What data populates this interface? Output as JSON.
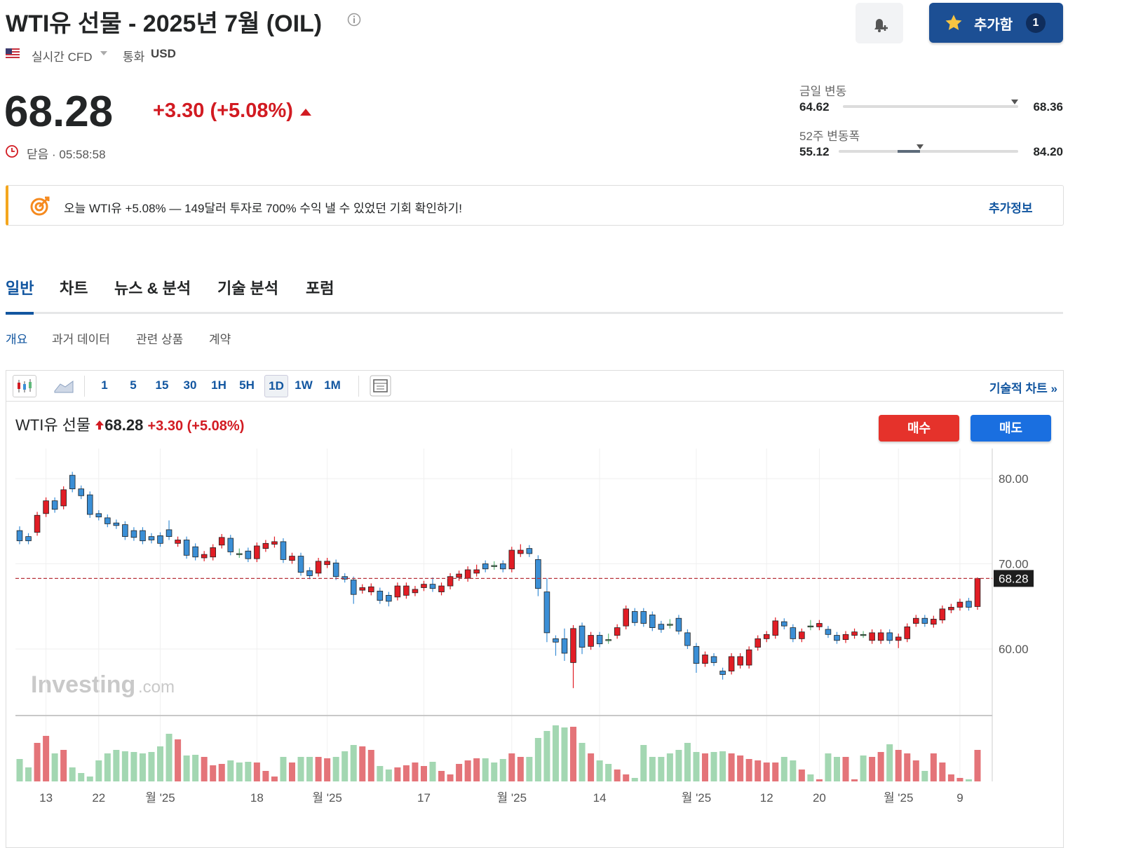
{
  "header": {
    "title": "WTI유 선물 - 2025년 7월 (OIL)",
    "feed": "실시간 CFD",
    "currency_label": "통화",
    "currency": "USD",
    "watch_button": "추가함",
    "watch_count": "1"
  },
  "quote": {
    "price": 68.28,
    "change": "+3.30",
    "change_pct": "(+5.08%)",
    "status": "닫음 · 05:58:58"
  },
  "ranges": [
    {
      "label": "금일 변동",
      "low": 64.62,
      "high": 68.36
    },
    {
      "label": "52주 변동폭",
      "low": 55.12,
      "high": {
        "value": 84.2,
        "label": "84.20"
      }
    }
  ],
  "banner": {
    "text": "오늘 WTI유 +5.08% — 149달러 투자로 700% 수익 낼 수 있었던 기회 확인하기!",
    "link": "추가정보"
  },
  "tabs": [
    "일반",
    "차트",
    "뉴스 & 분석",
    "기술 분석",
    "포럼"
  ],
  "active_tab": 0,
  "subtabs": [
    "개요",
    "과거 데이터",
    "관련 상품",
    "계약"
  ],
  "active_subtab": 0,
  "toolbar": {
    "intervals": [
      "1",
      "5",
      "15",
      "30",
      "1H",
      "5H",
      "1D",
      "1W",
      "1M"
    ],
    "active_interval": 6,
    "link": "기술적 차트 »"
  },
  "buttons": {
    "buy": "매수",
    "sell": "매도"
  },
  "watermark": {
    "brand": "Investing",
    "suffix": ".com"
  },
  "chart_data": {
    "type": "candlestick",
    "title": "WTI유 선물",
    "categories": [
      null,
      null,
      null,
      "13",
      null,
      null,
      null,
      null,
      null,
      "22",
      null,
      null,
      null,
      null,
      null,
      null,
      "월 '25",
      null,
      null,
      null,
      null,
      null,
      null,
      null,
      null,
      null,
      null,
      "18",
      null,
      null,
      null,
      null,
      null,
      null,
      null,
      "월 '25",
      null,
      null,
      null,
      null,
      null,
      null,
      null,
      null,
      null,
      null,
      "17",
      null,
      null,
      null,
      null,
      null,
      null,
      null,
      null,
      null,
      "월 '25",
      null,
      null,
      null,
      null,
      null,
      null,
      null,
      null,
      null,
      "14",
      null,
      null,
      null,
      null,
      null,
      null,
      null,
      null,
      null,
      null,
      "월 '25",
      null,
      null,
      null,
      null,
      null,
      null,
      null,
      "12",
      null,
      null,
      null,
      null,
      null,
      "20",
      null,
      null,
      null,
      null,
      null,
      null,
      null,
      null,
      "월 '25",
      null,
      null,
      null,
      null,
      null,
      null,
      "9",
      null,
      null
    ],
    "open": [
      73.9,
      73.2,
      73.7,
      75.9,
      77.4,
      76.8,
      80.4,
      78.8,
      78.1,
      75.9,
      75.4,
      74.8,
      74.6,
      73.9,
      73.9,
      73.2,
      73.3,
      74.0,
      72.4,
      72.8,
      72.0,
      70.7,
      70.8,
      72.2,
      73.0,
      71.2,
      71.5,
      70.6,
      71.8,
      72.3,
      72.6,
      70.4,
      70.9,
      69.2,
      68.9,
      69.9,
      70.1,
      68.5,
      68.1,
      66.9,
      66.7,
      66.8,
      66.3,
      66.1,
      66.3,
      66.6,
      67.2,
      67.6,
      66.7,
      67.4,
      68.4,
      68.3,
      68.9,
      70.0,
      69.8,
      70.0,
      69.4,
      71.2,
      71.8,
      70.5,
      66.7,
      61.2,
      61.2,
      58.4,
      62.7,
      60.3,
      61.6,
      61.1,
      61.6,
      62.7,
      64.4,
      64.4,
      64.0,
      62.9,
      62.9,
      63.6,
      61.9,
      60.3,
      58.3,
      59.1,
      57.4,
      57.4,
      58.1,
      58.1,
      60.2,
      61.2,
      61.6,
      63.2,
      62.5,
      61.2,
      62.7,
      62.6,
      62.3,
      61.6,
      61.1,
      61.6,
      61.7,
      61.0,
      61.0,
      61.9,
      61.0,
      61.2,
      63.0,
      63.6,
      62.9,
      63.4,
      64.6,
      64.9,
      65.6,
      64.98
    ],
    "high": [
      74.4,
      73.6,
      76.1,
      77.8,
      77.8,
      79.1,
      80.8,
      79.2,
      78.5,
      76.3,
      75.8,
      75.2,
      75.0,
      74.3,
      74.3,
      73.6,
      73.7,
      75.1,
      73.2,
      73.2,
      72.4,
      71.5,
      72.3,
      73.5,
      73.4,
      71.8,
      71.9,
      72.5,
      72.8,
      73.2,
      73.0,
      71.3,
      71.3,
      69.6,
      70.7,
      70.7,
      70.5,
      68.9,
      68.5,
      67.6,
      67.7,
      67.2,
      66.7,
      67.8,
      67.8,
      67.4,
      68.0,
      68.4,
      67.8,
      68.9,
      69.2,
      69.7,
      69.9,
      70.4,
      70.3,
      70.4,
      72.0,
      72.3,
      72.2,
      71.0,
      68.3,
      61.6,
      62.4,
      62.8,
      63.1,
      62.0,
      62.0,
      61.8,
      62.9,
      65.1,
      64.8,
      64.8,
      64.4,
      63.3,
      63.5,
      64.0,
      62.3,
      60.7,
      59.7,
      59.5,
      57.8,
      59.5,
      59.5,
      60.3,
      61.6,
      62.1,
      63.7,
      63.6,
      62.9,
      62.4,
      63.4,
      63.4,
      62.7,
      62.0,
      62.1,
      62.4,
      62.1,
      62.3,
      62.3,
      62.3,
      61.8,
      63.0,
      64.0,
      64.0,
      63.9,
      65.1,
      65.3,
      65.9,
      66.0,
      68.4
    ],
    "low": [
      72.3,
      72.3,
      73.3,
      75.5,
      76.0,
      76.4,
      78.4,
      77.6,
      75.4,
      75.1,
      74.3,
      74.1,
      72.8,
      72.7,
      72.3,
      72.4,
      72.0,
      72.8,
      72.0,
      70.6,
      70.4,
      70.3,
      70.4,
      71.8,
      71.0,
      70.7,
      70.2,
      70.2,
      71.4,
      71.9,
      70.1,
      70.0,
      68.6,
      68.2,
      68.5,
      69.5,
      68.1,
      67.8,
      65.3,
      66.5,
      66.3,
      65.3,
      65.0,
      65.7,
      65.9,
      66.2,
      66.8,
      66.7,
      66.3,
      67.0,
      68.0,
      67.9,
      68.5,
      69.0,
      69.3,
      69.0,
      69.0,
      70.8,
      70.8,
      66.2,
      60.8,
      59.2,
      58.6,
      55.4,
      59.4,
      59.9,
      60.2,
      60.6,
      61.2,
      62.3,
      62.7,
      62.6,
      62.1,
      61.9,
      62.4,
      61.7,
      60.0,
      57.2,
      57.9,
      58.0,
      56.4,
      57.0,
      57.7,
      57.7,
      59.8,
      60.8,
      61.2,
      62.3,
      60.8,
      60.8,
      62.2,
      62.2,
      61.3,
      60.6,
      60.7,
      61.2,
      61.3,
      60.6,
      60.6,
      60.6,
      60.1,
      60.8,
      62.6,
      62.6,
      62.5,
      63.0,
      64.2,
      64.5,
      64.5,
      64.6
    ],
    "close": [
      72.7,
      72.7,
      75.7,
      77.4,
      76.4,
      78.7,
      78.8,
      78.0,
      75.8,
      75.5,
      74.7,
      74.5,
      73.2,
      73.1,
      72.7,
      72.8,
      72.4,
      73.2,
      72.8,
      71.0,
      70.8,
      71.1,
      71.9,
      73.1,
      71.4,
      71.2,
      70.6,
      72.1,
      72.4,
      72.6,
      70.5,
      70.9,
      69.0,
      68.6,
      70.3,
      70.3,
      68.5,
      68.2,
      66.4,
      67.2,
      67.3,
      65.7,
      65.6,
      67.4,
      67.4,
      67.0,
      67.6,
      67.1,
      67.4,
      68.5,
      68.8,
      69.3,
      69.3,
      69.4,
      69.8,
      69.4,
      71.6,
      71.6,
      71.2,
      67.1,
      61.9,
      60.8,
      59.5,
      62.4,
      60.2,
      61.6,
      60.6,
      61.1,
      62.5,
      64.7,
      63.1,
      63.0,
      62.5,
      62.3,
      62.9,
      62.1,
      60.4,
      58.3,
      59.3,
      58.4,
      57.0,
      59.1,
      59.1,
      59.9,
      61.2,
      61.7,
      63.3,
      62.7,
      61.2,
      62.0,
      62.7,
      63.0,
      61.7,
      61.0,
      61.7,
      62.0,
      61.7,
      61.9,
      61.9,
      61.0,
      61.4,
      62.6,
      63.6,
      63.0,
      63.5,
      64.7,
      64.9,
      65.5,
      64.9,
      68.28
    ],
    "volume": [
      32,
      20,
      55,
      65,
      40,
      45,
      20,
      12,
      7,
      30,
      40,
      45,
      43,
      42,
      40,
      42,
      50,
      68,
      60,
      37,
      38,
      35,
      23,
      25,
      30,
      27,
      28,
      27,
      15,
      7,
      35,
      27,
      35,
      35,
      35,
      33,
      35,
      43,
      52,
      50,
      45,
      22,
      17,
      20,
      23,
      27,
      22,
      28,
      15,
      10,
      25,
      30,
      33,
      33,
      27,
      32,
      40,
      35,
      35,
      62,
      72,
      80,
      77,
      78,
      55,
      40,
      30,
      25,
      17,
      10,
      5,
      52,
      35,
      35,
      40,
      45,
      55,
      42,
      40,
      42,
      43,
      40,
      37,
      32,
      30,
      27,
      27,
      35,
      30,
      17,
      10,
      3,
      40,
      35,
      35,
      3,
      37,
      35,
      42,
      53,
      45,
      40,
      30,
      15,
      40,
      27,
      10,
      5,
      3,
      45
    ],
    "volume_lim": [
      0,
      100
    ],
    "ylim": [
      52.26,
      83.54
    ],
    "yticks": [
      {
        "value": 60,
        "label": "60.00"
      },
      {
        "value": 70,
        "label": "70.00"
      },
      {
        "value": 80,
        "label": "80.00"
      }
    ],
    "grid": true,
    "up_color": "#e11d25",
    "down_color": "#3b8fd6",
    "flat_color": "#5fb97a",
    "volume_up_color": "#e47479",
    "volume_down_color": "#a3d7b2",
    "price_line_color": "#b8333a"
  }
}
